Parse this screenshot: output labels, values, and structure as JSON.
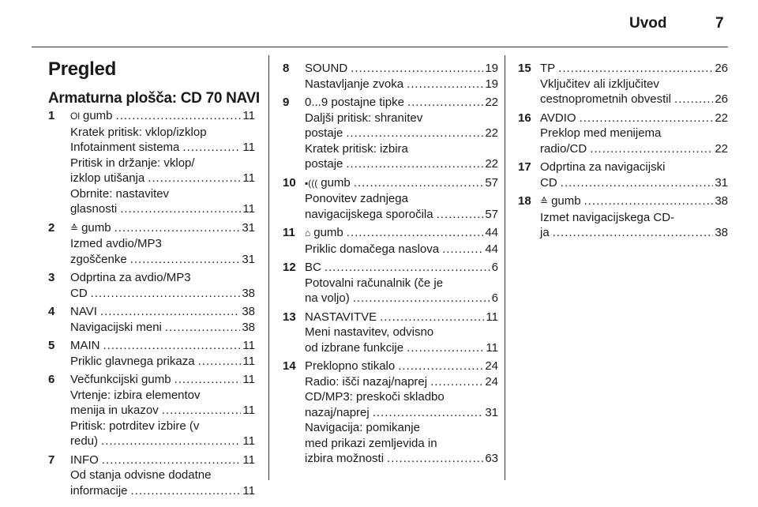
{
  "header": {
    "title": "Uvod",
    "page_number": "7"
  },
  "heading": "Pregled",
  "subheading": "Armaturna plošča: CD 70 NAVI",
  "columns": [
    [
      {
        "num": "1",
        "icon": {
          "name": "power-icon",
          "glyph": "Ol"
        },
        "lines": [
          {
            "t": "gumb",
            "p": "11"
          },
          {
            "t": "Kratek pritisk: vklop/izklop"
          },
          {
            "t": "Infotainment sistema",
            "p": "11"
          },
          {
            "t": "Pritisk in držanje: vklop/"
          },
          {
            "t": "izklop utišanja",
            "p": "11"
          },
          {
            "t": "Obrnite: nastavitev"
          },
          {
            "t": "glasnosti",
            "p": "11"
          }
        ]
      },
      {
        "num": "2",
        "icon": {
          "name": "eject-audio-icon",
          "glyph": "≙"
        },
        "lines": [
          {
            "t": "gumb",
            "p": "31"
          },
          {
            "t": "Izmed avdio/MP3"
          },
          {
            "t": "zgoščenke",
            "p": "31"
          }
        ]
      },
      {
        "num": "3",
        "lines": [
          {
            "t": "Odprtina za avdio/MP3"
          },
          {
            "t": "CD",
            "p": "38"
          }
        ]
      },
      {
        "num": "4",
        "lines": [
          {
            "t": "NAVI",
            "p": "38"
          },
          {
            "t": "Navigacijski meni",
            "p": "38"
          }
        ]
      },
      {
        "num": "5",
        "lines": [
          {
            "t": "MAIN",
            "p": "11"
          },
          {
            "t": "Priklic glavnega prikaza",
            "p": "11"
          }
        ]
      },
      {
        "num": "6",
        "lines": [
          {
            "t": "Večfunkcijski gumb",
            "p": "11"
          },
          {
            "t": "Vrtenje: izbira elementov"
          },
          {
            "t": "menija in ukazov",
            "p": "11"
          },
          {
            "t": "Pritisk: potrditev izbire (v"
          },
          {
            "t": "redu)",
            "p": "11"
          }
        ]
      },
      {
        "num": "7",
        "lines": [
          {
            "t": "INFO",
            "p": "11"
          },
          {
            "t": "Od stanja odvisne dodatne"
          },
          {
            "t": "informacije",
            "p": "11"
          }
        ]
      }
    ],
    [
      {
        "num": "8",
        "lines": [
          {
            "t": "SOUND",
            "p": "19"
          },
          {
            "t": "Nastavljanje zvoka",
            "p": "19"
          }
        ]
      },
      {
        "num": "9",
        "lines": [
          {
            "t": "0...9 postajne tipke",
            "p": "22"
          },
          {
            "t": "Daljši pritisk: shranitev"
          },
          {
            "t": "postaje",
            "p": "22"
          },
          {
            "t": "Kratek pritisk: izbira"
          },
          {
            "t": "postaje",
            "p": "22"
          }
        ]
      },
      {
        "num": "10",
        "icon": {
          "name": "voice-repeat-icon",
          "glyph": "▪((("
        },
        "lines": [
          {
            "t": "gumb",
            "p": "57"
          },
          {
            "t": "Ponovitev zadnjega"
          },
          {
            "t": "navigacijskega sporočila",
            "p": "57"
          }
        ]
      },
      {
        "num": "11",
        "icon": {
          "name": "home-icon",
          "glyph": "⌂"
        },
        "lines": [
          {
            "t": "gumb",
            "p": "44"
          },
          {
            "t": "Priklic domačega naslova",
            "p": "44"
          }
        ]
      },
      {
        "num": "12",
        "lines": [
          {
            "t": "BC",
            "p": "6"
          },
          {
            "t": "Potovalni računalnik (če je"
          },
          {
            "t": "na voljo)",
            "p": "6"
          }
        ]
      },
      {
        "num": "13",
        "lines": [
          {
            "t": "NASTAVITVE",
            "p": "11"
          },
          {
            "t": "Meni nastavitev, odvisno"
          },
          {
            "t": "od izbrane funkcije",
            "p": "11"
          }
        ]
      },
      {
        "num": "14",
        "lines": [
          {
            "t": "Preklopno stikalo",
            "p": "24"
          },
          {
            "t": "Radio: išči nazaj/naprej",
            "p": "24"
          },
          {
            "t": "CD/MP3: preskoči skladbo"
          },
          {
            "t": "nazaj/naprej",
            "p": "31"
          },
          {
            "t": "Navigacija: pomikanje"
          },
          {
            "t": "med prikazi zemljevida in"
          },
          {
            "t": "izbira možnosti",
            "p": "63"
          }
        ]
      }
    ],
    [
      {
        "num": "15",
        "lines": [
          {
            "t": "TP",
            "p": "26"
          },
          {
            "t": "Vključitev ali izključitev"
          },
          {
            "t": "cestnoprometnih obvestil",
            "p": "26"
          }
        ]
      },
      {
        "num": "16",
        "lines": [
          {
            "t": "AVDIO",
            "p": "22"
          },
          {
            "t": "Preklop med menijema"
          },
          {
            "t": "radio/CD",
            "p": "22"
          }
        ]
      },
      {
        "num": "17",
        "lines": [
          {
            "t": "Odprtina za navigacijski"
          },
          {
            "t": "CD",
            "p": "31"
          }
        ]
      },
      {
        "num": "18",
        "icon": {
          "name": "eject-nav-icon",
          "glyph": "≙"
        },
        "lines": [
          {
            "t": "gumb",
            "p": "38"
          },
          {
            "t": "Izmet navigacijskega CD-"
          },
          {
            "t": "ja",
            "p": "38"
          }
        ]
      }
    ]
  ]
}
